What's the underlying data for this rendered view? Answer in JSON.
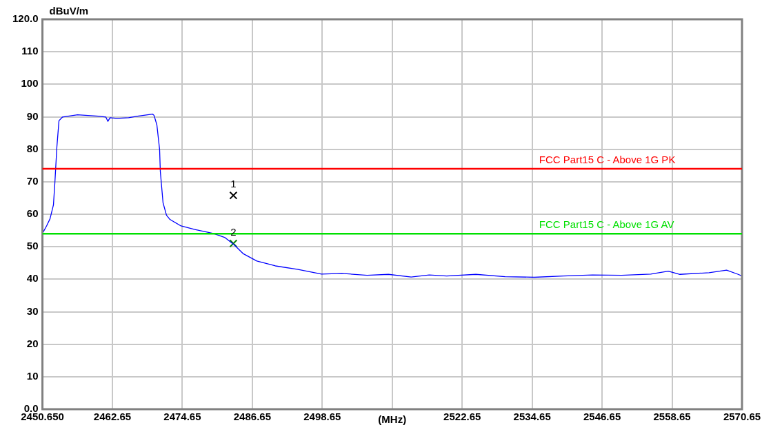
{
  "chart_data": {
    "type": "line",
    "ylabel": "dBuV/m",
    "xlabel": "(MHz)",
    "xlim": [
      2450.65,
      2570.65
    ],
    "xticks": [
      {
        "value": 2450.65,
        "label": "2450.650"
      },
      2462.65,
      2474.65,
      2486.65,
      2498.65,
      {
        "value": 2510.65,
        "label": null
      },
      2522.65,
      2534.65,
      2546.65,
      2558.65,
      2570.65
    ],
    "ylim": [
      0,
      120
    ],
    "yticks": [
      {
        "value": 0,
        "label": "0.0"
      },
      10,
      20,
      30,
      40,
      50,
      60,
      70,
      80,
      90,
      100,
      110,
      {
        "value": 120,
        "label": "120.0"
      }
    ],
    "grid": true,
    "legend": false,
    "series": [
      {
        "color": "#0000ff",
        "marker": "none",
        "line_style": "solid",
        "x": [
          2450.65,
          2451.36,
          2451.95,
          2452.54,
          2452.78,
          2453.13,
          2453.49,
          2454.08,
          2456.68,
          2460.23,
          2461.53,
          2461.88,
          2462.24,
          2463.42,
          2465.43,
          2466.97,
          2469.57,
          2469.8,
          2470.28,
          2470.75,
          2470.87,
          2471.34,
          2471.93,
          2472.52,
          2474.42,
          2476.78,
          2479.97,
          2481.98,
          2483.52,
          2485.06,
          2487.42,
          2490.61,
          2494.51,
          2498.53,
          2502.0,
          2506.34,
          2510.0,
          2513.9,
          2517.0,
          2520.0,
          2525.0,
          2530.0,
          2535.0,
          2540.0,
          2545.0,
          2550.0,
          2555.0,
          2558.0,
          2560.0,
          2565.0,
          2568.0,
          2570.0,
          2570.65
        ],
        "values": [
          54.1,
          56.4,
          58.6,
          62.9,
          69.6,
          80.8,
          88.8,
          89.9,
          90.6,
          90.2,
          89.9,
          88.6,
          89.7,
          89.5,
          89.7,
          90.2,
          90.8,
          90.4,
          87.5,
          79.9,
          73.2,
          63.5,
          59.7,
          58.4,
          56.4,
          55.3,
          54.1,
          52.8,
          50.6,
          47.9,
          45.6,
          44.1,
          43.0,
          41.6,
          41.8,
          41.2,
          41.5,
          40.7,
          41.3,
          41.0,
          41.5,
          40.8,
          40.6,
          41.0,
          41.3,
          41.2,
          41.6,
          42.5,
          41.5,
          42.0,
          42.8,
          41.5,
          41.0
        ]
      },
      {
        "type": "scatter",
        "color": "#000000",
        "marker": "cross",
        "x": [
          2483.4
        ],
        "values": [
          65.8
        ]
      },
      {
        "type": "scatter",
        "color": "#008000",
        "marker": "cross",
        "x": [
          2483.4
        ],
        "values": [
          51.0
        ]
      }
    ],
    "ref_lines": [
      {
        "axis": "y",
        "value": 74,
        "label": "FCC Part15 C - Above 1G PK",
        "color": "#ff0000",
        "line_style": "solid"
      },
      {
        "axis": "y",
        "value": 54,
        "label": "FCC Part15 C - Above 1G AV",
        "color": "#00e000",
        "line_style": "solid"
      }
    ],
    "annotations": [
      {
        "text": "1",
        "x": 2483.4,
        "y": 65.8
      },
      {
        "text": "2",
        "x": 2483.4,
        "y": 51.0
      }
    ]
  }
}
